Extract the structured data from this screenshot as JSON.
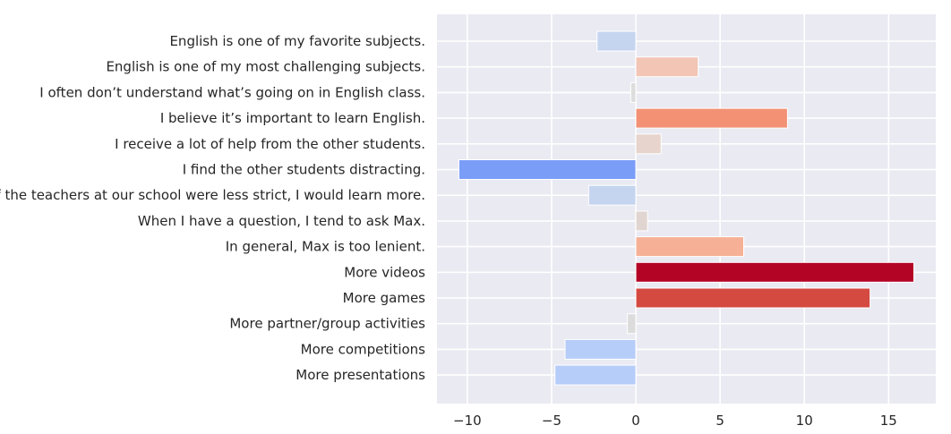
{
  "chart_data": {
    "type": "bar",
    "orientation": "horizontal",
    "categories": [
      "English is one of my favorite subjects.",
      "English is one of my most challenging subjects.",
      "I often don’t understand what’s going on in English class.",
      "I believe it’s important to learn English.",
      "I receive a lot of help from the other students.",
      "I find the other students distracting.",
      "If the teachers at our school were less strict, I would learn more.",
      "When I have a question, I tend to ask Max.",
      "In general, Max is too lenient.",
      "More videos",
      "More games",
      "More partner/group activities",
      "More competitions",
      "More presentations"
    ],
    "values": [
      -2.3,
      3.7,
      -0.3,
      9.0,
      1.5,
      -10.5,
      -2.8,
      0.7,
      6.4,
      16.5,
      13.9,
      -0.5,
      -4.2,
      -4.8
    ],
    "colors": [
      "#c5d5f0",
      "#f2c5b5",
      "#dddddd",
      "#f29174",
      "#e7d4cc",
      "#7a9df8",
      "#c5d5f0",
      "#e1d5d1",
      "#f6b096",
      "#b40426",
      "#d44940",
      "#dcdcdc",
      "#b6cdfa",
      "#b6cdfa"
    ],
    "xlim": [
      -11.8,
      17.8
    ],
    "xticks": [
      -10,
      -5,
      0,
      5,
      10,
      15
    ],
    "xtick_labels": [
      "−10",
      "−5",
      "0",
      "5",
      "10",
      "15"
    ],
    "grid": true,
    "background": "#eaeaf2",
    "title": "",
    "xlabel": "",
    "ylabel": ""
  }
}
